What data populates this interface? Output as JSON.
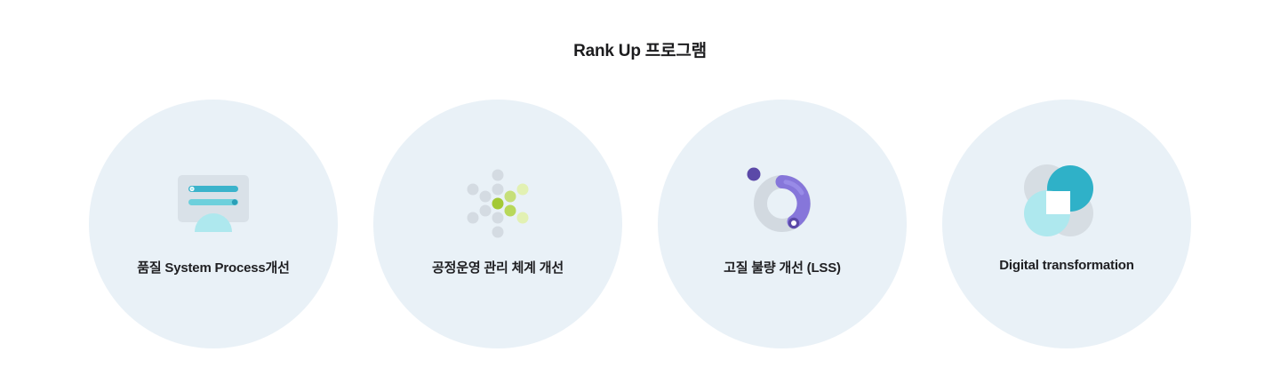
{
  "header": {
    "title": "Rank Up 프로그램"
  },
  "programs": [
    {
      "label": "품질 System Process개선",
      "icon": "monitor-list-icon"
    },
    {
      "label": "공정운영 관리 체계 개선",
      "icon": "dot-grid-icon"
    },
    {
      "label": "고질 불량 개선 (LSS)",
      "icon": "donut-progress-icon"
    },
    {
      "label": "Digital transformation",
      "icon": "overlapping-circles-icon"
    }
  ],
  "colors": {
    "circle_bg": "#e9f1f7",
    "teal": "#2fb1c8",
    "light_teal": "#a9e8ee",
    "gray": "#d6dde3",
    "green": "#a6cc3c",
    "light_green": "#dcefa5",
    "purple": "#7c6fd6",
    "dark_purple": "#5a48a6"
  }
}
